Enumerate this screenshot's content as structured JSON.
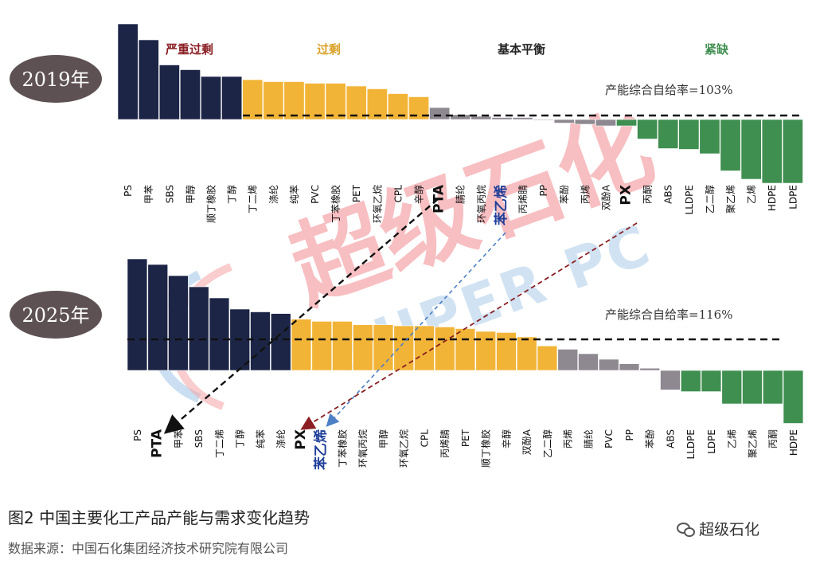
{
  "figure": {
    "caption": "图2    中国主要化工产品产能与需求变化趋势",
    "source": "数据来源：中国石化集团经济技术研究院有限公司",
    "brand": "超级石化",
    "watermark": {
      "cn": "超级石化",
      "en": "SUPER PC"
    }
  },
  "colors": {
    "navy": "#1c2546",
    "gold": "#f2b437",
    "gray": "#8e8891",
    "green": "#3f8f50",
    "badge": "#5e5154"
  },
  "chart_data": [
    {
      "type": "bar",
      "year_label": "2019年",
      "categories": [
        "PS",
        "甲苯",
        "SBS",
        "甲醇",
        "顺丁橡胶",
        "丁醇",
        "丁二烯",
        "涤纶",
        "纯苯",
        "PVC",
        "丁苯橡胶",
        "PET",
        "环氧乙烷",
        "CPL",
        "辛醇",
        "PTA",
        "腈纶",
        "环氧丙烷",
        "苯乙烯",
        "丙烯腈",
        "PP",
        "苯酚",
        "丙烯",
        "双酚A",
        "PX",
        "丙酮",
        "ABS",
        "LLDPE",
        "乙二醇",
        "聚乙烯",
        "乙烯",
        "HDPE",
        "LDPE"
      ],
      "values": [
        240,
        200,
        137,
        125,
        108,
        108,
        100,
        95,
        95,
        91,
        91,
        84,
        77,
        65,
        57,
        30,
        12,
        8,
        5,
        5,
        -2,
        -9,
        -12,
        -16,
        -16,
        -49,
        -73,
        -75,
        -86,
        -129,
        -150,
        -160,
        -160
      ],
      "colors_by_group": [
        "navy",
        "navy",
        "navy",
        "navy",
        "navy",
        "navy",
        "gold",
        "gold",
        "gold",
        "gold",
        "gold",
        "gold",
        "gold",
        "gold",
        "gold",
        "gray",
        "gray",
        "gray",
        "gray",
        "gray",
        "gray",
        "gray",
        "gray",
        "gray",
        "green",
        "green",
        "green",
        "green",
        "green",
        "green",
        "green",
        "green",
        "green"
      ],
      "groups": [
        "严重过剩",
        "过剩",
        "基本平衡",
        "紧缺"
      ],
      "annotation": "产能综合自给率=103%",
      "highlight": [
        "PTA",
        "苯乙烯",
        "PX"
      ]
    },
    {
      "type": "bar",
      "year_label": "2025年",
      "categories": [
        "PS",
        "PTA",
        "甲苯",
        "SBS",
        "丁二烯",
        "丁醇",
        "纯苯",
        "涤纶",
        "PX",
        "苯乙烯",
        "丁苯橡胶",
        "环氧丙烷",
        "甲醇",
        "环氧乙烷",
        "CPL",
        "丙烯腈",
        "PET",
        "顺丁橡胶",
        "辛醇",
        "双酚A",
        "乙二醇",
        "丙烯",
        "腈纶",
        "PVC",
        "PP",
        "苯酚",
        "ABS",
        "LLDPE",
        "LDPE",
        "乙烯",
        "聚乙烯",
        "丙酮",
        "HDPE"
      ],
      "values": [
        200,
        190,
        170,
        150,
        130,
        110,
        105,
        102,
        92,
        88,
        88,
        82,
        82,
        80,
        80,
        78,
        75,
        70,
        68,
        60,
        44,
        38,
        30,
        20,
        12,
        4,
        -35,
        -38,
        -38,
        -60,
        -60,
        -60,
        -95
      ],
      "colors_by_group": [
        "navy",
        "navy",
        "navy",
        "navy",
        "navy",
        "navy",
        "navy",
        "navy",
        "gold",
        "gold",
        "gold",
        "gold",
        "gold",
        "gold",
        "gold",
        "gold",
        "gold",
        "gold",
        "gold",
        "gold",
        "gold",
        "gray",
        "gray",
        "gray",
        "gray",
        "gray",
        "gray",
        "green",
        "green",
        "green",
        "green",
        "green",
        "green"
      ],
      "annotation": "产能综合自给率=116%",
      "highlight": [
        "PTA",
        "苯乙烯",
        "PX"
      ]
    }
  ]
}
